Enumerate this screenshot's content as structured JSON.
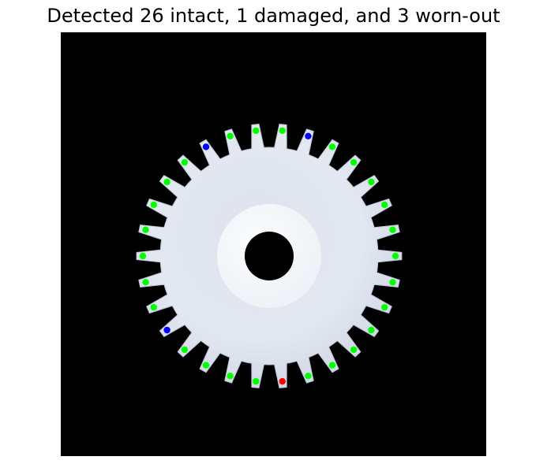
{
  "title": "Detected 26 intact, 1 damaged, and 3 worn-out",
  "colors": {
    "background": "#000000",
    "gear": "#e3e8f1",
    "intact": "#00ff00",
    "damaged": "#ff0000",
    "worn_out": "#0000ff"
  },
  "teeth": {
    "total": 30,
    "status": [
      "intact",
      "intact",
      "worn_out",
      "intact",
      "intact",
      "intact",
      "intact",
      "intact",
      "intact",
      "intact",
      "intact",
      "intact",
      "intact",
      "intact",
      "intact",
      "damaged",
      "intact",
      "intact",
      "intact",
      "intact",
      "worn_out",
      "intact",
      "intact",
      "intact",
      "intact",
      "intact",
      "intact",
      "intact",
      "worn_out",
      "intact"
    ]
  }
}
